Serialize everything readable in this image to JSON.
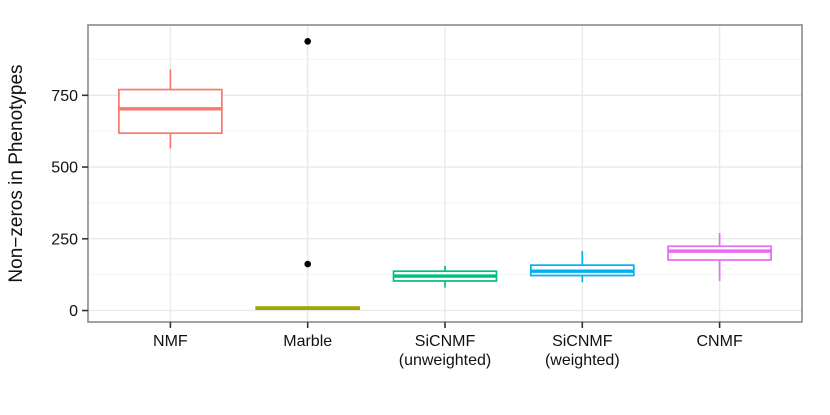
{
  "chart_data": {
    "type": "boxplot",
    "title": "",
    "xlabel": "",
    "ylabel": "Non−zeros in Phenotypes",
    "ylim": [
      -40,
      995
    ],
    "yticks": [
      0,
      250,
      500,
      750
    ],
    "ygrid_major": [
      0,
      250,
      500,
      750
    ],
    "ygrid_minor": [
      125,
      375,
      625,
      875
    ],
    "grid": "on",
    "legend_position": "none",
    "outlier_color": "#000000",
    "panel": {
      "background": "#ffffff",
      "border_color": "#8a8a8a",
      "grid_major_color": "#e8e8e8",
      "grid_minor_color": "#f4f4f4",
      "tick_color": "#333333"
    },
    "categories": [
      {
        "label_lines": [
          "NMF"
        ],
        "color": "#F8766D",
        "box": {
          "whisker_low": 565,
          "q1": 618,
          "median": 703,
          "q3": 770,
          "whisker_high": 840
        },
        "outliers": []
      },
      {
        "label_lines": [
          "Marble"
        ],
        "color": "#A3A500",
        "box": {
          "whisker_low": 2,
          "q1": 5,
          "median": 8,
          "q3": 12,
          "whisker_high": 15
        },
        "outliers": [
          162,
          938
        ]
      },
      {
        "label_lines": [
          "SiCNMF",
          "(unweighted)"
        ],
        "color": "#00BF7D",
        "box": {
          "whisker_low": 80,
          "q1": 103,
          "median": 120,
          "q3": 137,
          "whisker_high": 155
        },
        "outliers": []
      },
      {
        "label_lines": [
          "SiCNMF",
          "(weighted)"
        ],
        "color": "#00B0F6",
        "box": {
          "whisker_low": 99,
          "q1": 122,
          "median": 137,
          "q3": 158,
          "whisker_high": 207
        },
        "outliers": []
      },
      {
        "label_lines": [
          "CNMF"
        ],
        "color": "#E76BF3",
        "box": {
          "whisker_low": 103,
          "q1": 176,
          "median": 207,
          "q3": 224,
          "whisker_high": 270
        },
        "outliers": []
      }
    ]
  }
}
